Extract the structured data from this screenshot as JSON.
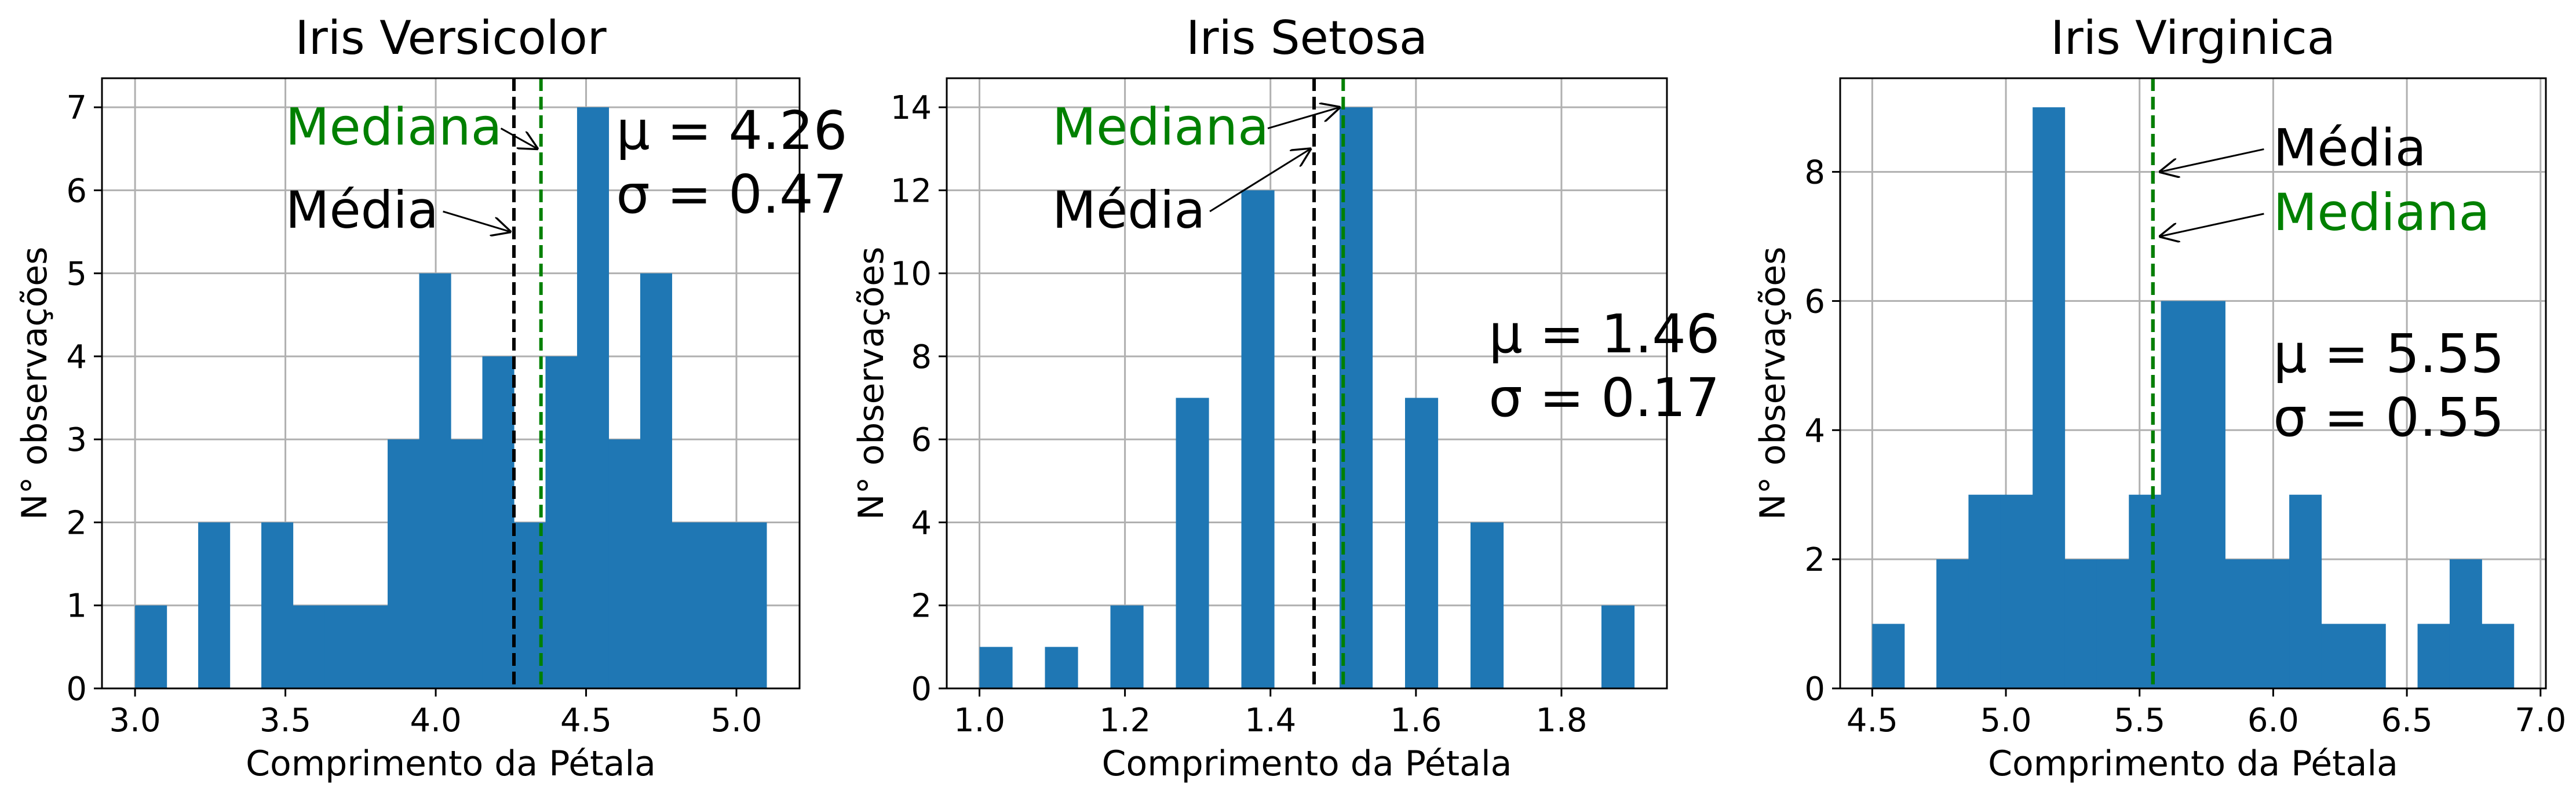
{
  "chart_data": [
    {
      "type": "histogram",
      "title": "Iris Versicolor",
      "xlabel": "Comprimento da Pétala",
      "ylabel": "N° observações",
      "xlim": [
        2.89,
        5.21
      ],
      "ylim": [
        0,
        7.35
      ],
      "xticks": [
        3.0,
        3.5,
        4.0,
        4.5,
        5.0
      ],
      "xtick_labels": [
        "3.0",
        "3.5",
        "4.0",
        "4.5",
        "5.0"
      ],
      "yticks": [
        0,
        1,
        2,
        3,
        4,
        5,
        6,
        7
      ],
      "ytick_labels": [
        "0",
        "1",
        "2",
        "3",
        "4",
        "5",
        "6",
        "7"
      ],
      "bin_edges": [
        3.0,
        3.105,
        3.21,
        3.315,
        3.42,
        3.525,
        3.63,
        3.735,
        3.84,
        3.945,
        4.05,
        4.155,
        4.26,
        4.365,
        4.47,
        4.575,
        4.68,
        4.785,
        4.89,
        4.995,
        5.1
      ],
      "counts": [
        1,
        0,
        2,
        0,
        2,
        1,
        1,
        1,
        3,
        5,
        3,
        4,
        2,
        4,
        7,
        3,
        5,
        2,
        2,
        2
      ],
      "mean": 4.26,
      "median": 4.35,
      "stats_lines": [
        "μ = 4.26",
        "σ = 0.47"
      ],
      "annotations": [
        {
          "text": "Mediana",
          "color": "#008000",
          "x": 3.5,
          "y": 6.55,
          "target_x": 4.35,
          "target_y": 6.5
        },
        {
          "text": "Média",
          "color": "#000000",
          "x": 3.5,
          "y": 5.55,
          "target_x": 4.26,
          "target_y": 5.5
        }
      ],
      "stats_position": {
        "x": 4.6,
        "y": 6.5
      },
      "grid": true
    },
    {
      "type": "histogram",
      "title": "Iris Setosa",
      "xlabel": "Comprimento da Pétala",
      "ylabel": "N° observações",
      "xlim": [
        0.955,
        1.945
      ],
      "ylim": [
        0,
        14.7
      ],
      "xticks": [
        1.0,
        1.2,
        1.4,
        1.6,
        1.8
      ],
      "xtick_labels": [
        "1.0",
        "1.2",
        "1.4",
        "1.6",
        "1.8"
      ],
      "yticks": [
        0,
        2,
        4,
        6,
        8,
        10,
        12,
        14
      ],
      "ytick_labels": [
        "0",
        "2",
        "4",
        "6",
        "8",
        "10",
        "12",
        "14"
      ],
      "bin_edges": [
        1.0,
        1.045,
        1.09,
        1.135,
        1.18,
        1.225,
        1.27,
        1.315,
        1.36,
        1.405,
        1.45,
        1.495,
        1.54,
        1.585,
        1.63,
        1.675,
        1.72,
        1.765,
        1.81,
        1.855,
        1.9
      ],
      "counts": [
        1,
        0,
        1,
        0,
        2,
        0,
        7,
        0,
        12,
        0,
        0,
        14,
        0,
        7,
        0,
        4,
        0,
        0,
        0,
        2
      ],
      "mean": 1.46,
      "median": 1.5,
      "stats_lines": [
        "μ = 1.46",
        "σ = 0.17"
      ],
      "annotations": [
        {
          "text": "Mediana",
          "color": "#008000",
          "x": 1.1,
          "y": 13.1,
          "target_x": 1.5,
          "target_y": 14.0
        },
        {
          "text": "Média",
          "color": "#000000",
          "x": 1.1,
          "y": 11.1,
          "target_x": 1.46,
          "target_y": 13.0
        }
      ],
      "stats_position": {
        "x": 1.7,
        "y": 8.1
      },
      "grid": true
    },
    {
      "type": "histogram",
      "title": "Iris Virginica",
      "xlabel": "Comprimento da Pétala",
      "ylabel": "N° observações",
      "xlim": [
        4.38,
        7.02
      ],
      "ylim": [
        0,
        9.45
      ],
      "xticks": [
        4.5,
        5.0,
        5.5,
        6.0,
        6.5,
        7.0
      ],
      "xtick_labels": [
        "4.5",
        "5.0",
        "5.5",
        "6.0",
        "6.5",
        "7.0"
      ],
      "yticks": [
        0,
        2,
        4,
        6,
        8
      ],
      "ytick_labels": [
        "0",
        "2",
        "4",
        "6",
        "8"
      ],
      "bin_edges": [
        4.5,
        4.62,
        4.74,
        4.86,
        4.98,
        5.1,
        5.22,
        5.34,
        5.46,
        5.58,
        5.7,
        5.82,
        5.94,
        6.06,
        6.18,
        6.3,
        6.42,
        6.54,
        6.66,
        6.78,
        6.9
      ],
      "counts": [
        1,
        0,
        2,
        3,
        3,
        9,
        2,
        2,
        3,
        6,
        6,
        2,
        2,
        3,
        1,
        1,
        0,
        1,
        2,
        1
      ],
      "mean": 5.55,
      "median": 5.55,
      "stats_lines": [
        "μ = 5.55",
        "σ = 0.55"
      ],
      "annotations": [
        {
          "text": "Média",
          "color": "#000000",
          "x": 6.0,
          "y": 8.1,
          "target_x": 5.55,
          "target_y": 8.0
        },
        {
          "text": "Mediana",
          "color": "#008000",
          "x": 6.0,
          "y": 7.1,
          "target_x": 5.55,
          "target_y": 7.0
        }
      ],
      "stats_position": {
        "x": 6.0,
        "y": 4.9
      },
      "grid": true
    }
  ],
  "colors": {
    "bars": "#1f77b4",
    "mean_line": "#000000",
    "median_line": "#008000",
    "grid": "#b0b0b0"
  }
}
